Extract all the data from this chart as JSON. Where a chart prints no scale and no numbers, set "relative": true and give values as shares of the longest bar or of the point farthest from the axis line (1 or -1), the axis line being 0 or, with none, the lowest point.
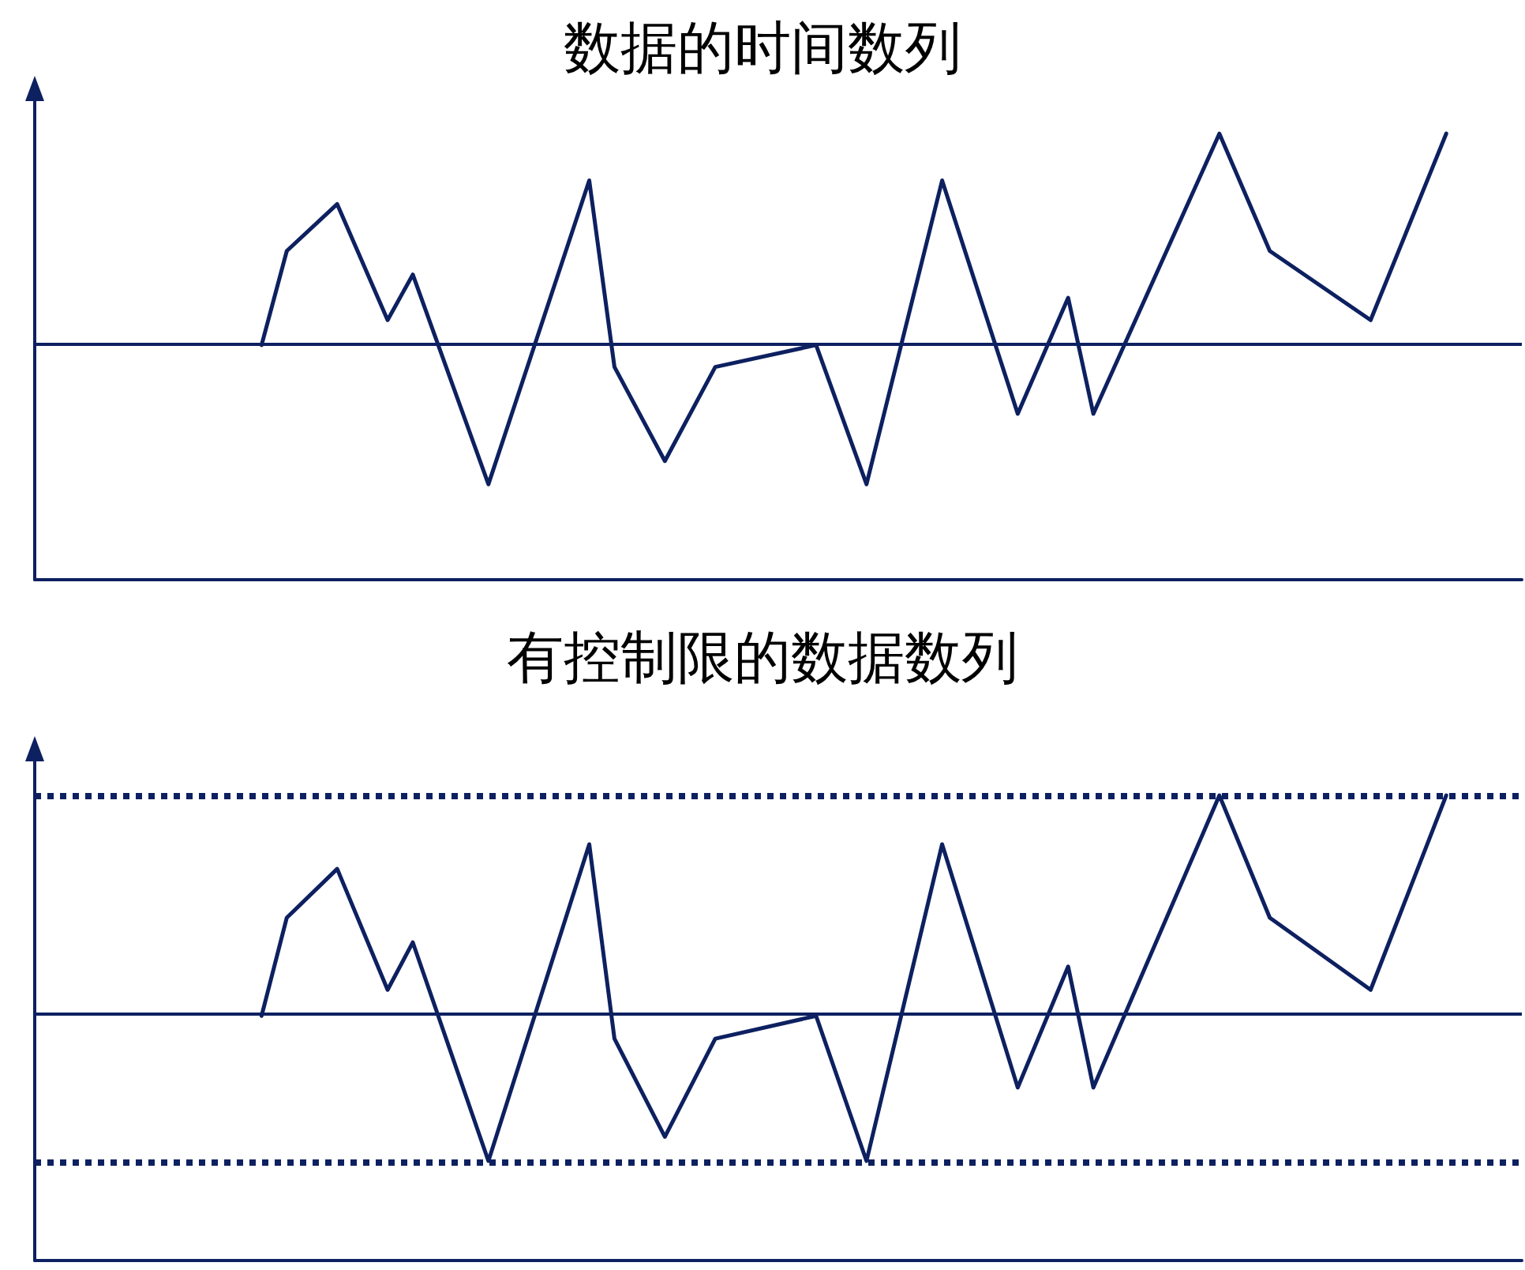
{
  "chart_data": [
    {
      "type": "line",
      "title": "数据的时间数列",
      "relative": true,
      "tick_labels": false,
      "line_style": "solid",
      "categories": [
        null,
        null,
        null,
        null,
        null,
        null,
        null,
        null,
        null,
        null,
        null,
        null,
        null,
        null,
        null,
        null,
        null,
        null,
        null,
        null,
        null,
        null,
        null,
        null,
        null,
        null,
        null,
        null,
        null,
        null,
        null,
        null,
        null,
        null,
        null,
        null,
        null,
        null,
        null,
        null,
        null,
        null,
        null,
        null,
        null,
        null,
        null,
        null,
        null,
        null,
        null,
        null,
        null,
        null,
        null,
        null,
        null,
        null,
        null,
        null
      ],
      "series": [
        {
          "color": "#0d2060",
          "values": [
            null,
            null,
            null,
            null,
            null,
            null,
            null,
            null,
            null,
            0.526,
            0.737,
            null,
            0.842,
            null,
            0.582,
            0.684,
            null,
            null,
            0.214,
            null,
            null,
            null,
            0.895,
            0.477,
            null,
            0.266,
            null,
            0.477,
            null,
            null,
            null,
            0.526,
            null,
            0.214,
            null,
            null,
            0.895,
            null,
            null,
            0.372,
            null,
            0.632,
            0.372,
            null,
            null,
            null,
            null,
            1,
            null,
            0.737,
            null,
            null,
            null,
            0.582,
            null,
            null,
            1,
            null,
            null,
            null
          ]
        }
      ],
      "ref_lines": [
        {
          "axis": "y",
          "value": 0.526,
          "color": "#0d2060",
          "line_style": "solid"
        }
      ]
    },
    {
      "type": "line",
      "title": "有控制限的数据数列",
      "relative": true,
      "tick_labels": false,
      "line_style": "solid",
      "categories": [
        null,
        null,
        null,
        null,
        null,
        null,
        null,
        null,
        null,
        null,
        null,
        null,
        null,
        null,
        null,
        null,
        null,
        null,
        null,
        null,
        null,
        null,
        null,
        null,
        null,
        null,
        null,
        null,
        null,
        null,
        null,
        null,
        null,
        null,
        null,
        null,
        null,
        null,
        null,
        null,
        null,
        null,
        null,
        null,
        null,
        null,
        null,
        null,
        null,
        null,
        null,
        null,
        null,
        null,
        null,
        null,
        null,
        null,
        null,
        null
      ],
      "series": [
        {
          "color": "#0d2060",
          "values": [
            null,
            null,
            null,
            null,
            null,
            null,
            null,
            null,
            null,
            0.526,
            0.737,
            null,
            0.842,
            null,
            0.582,
            0.684,
            null,
            null,
            0.214,
            null,
            null,
            null,
            0.895,
            0.477,
            null,
            0.266,
            null,
            0.477,
            null,
            null,
            null,
            0.526,
            null,
            0.214,
            null,
            null,
            0.895,
            null,
            null,
            0.372,
            null,
            0.632,
            0.372,
            null,
            null,
            null,
            null,
            1,
            null,
            0.737,
            null,
            null,
            null,
            0.582,
            null,
            null,
            1,
            null,
            null,
            null
          ]
        }
      ],
      "ref_lines": [
        {
          "axis": "y",
          "value": 0.526,
          "color": "#0d2060",
          "line_style": "solid"
        },
        {
          "axis": "y",
          "value": 1,
          "color": "#0d2060",
          "line_style": "dotted"
        },
        {
          "axis": "y",
          "value": 0.214,
          "color": "#0d2060",
          "line_style": "dotted"
        }
      ]
    }
  ]
}
